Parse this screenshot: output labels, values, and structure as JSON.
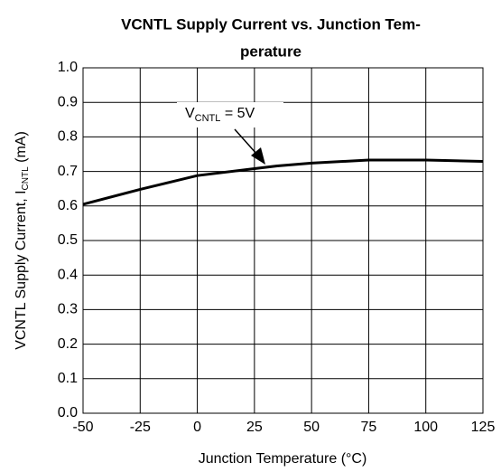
{
  "chart_data": {
    "type": "line",
    "title": [
      "VCNTL Supply Current vs. Junction Tem-",
      "perature"
    ],
    "x_label": "Junction Temperature (°C)",
    "y_label": {
      "main": "VCNTL Supply Current, I",
      "sub": "CNTL",
      "unit": " (mA)"
    },
    "annotation": {
      "main": "V",
      "sub": "CNTL",
      "rest": " = 5V"
    },
    "x": [
      -50,
      -25,
      0,
      25,
      35,
      50,
      75,
      100,
      125
    ],
    "series": [
      {
        "name": "VCNTL = 5V",
        "color": "#000000",
        "values": [
          0.605,
          0.648,
          0.688,
          0.708,
          0.716,
          0.724,
          0.733,
          0.733,
          0.729
        ]
      }
    ],
    "xlim": [
      -50,
      125
    ],
    "xticks": [
      -50,
      -25,
      0,
      25,
      50,
      75,
      100,
      125
    ],
    "ylim": [
      0,
      1
    ],
    "yticks": [
      {
        "value": 0,
        "label": "0.0"
      },
      0.1,
      0.2,
      0.3,
      0.4,
      0.5,
      0.6,
      0.7,
      0.8,
      0.9,
      {
        "value": 1,
        "label": "1.0"
      }
    ],
    "grid": true
  }
}
